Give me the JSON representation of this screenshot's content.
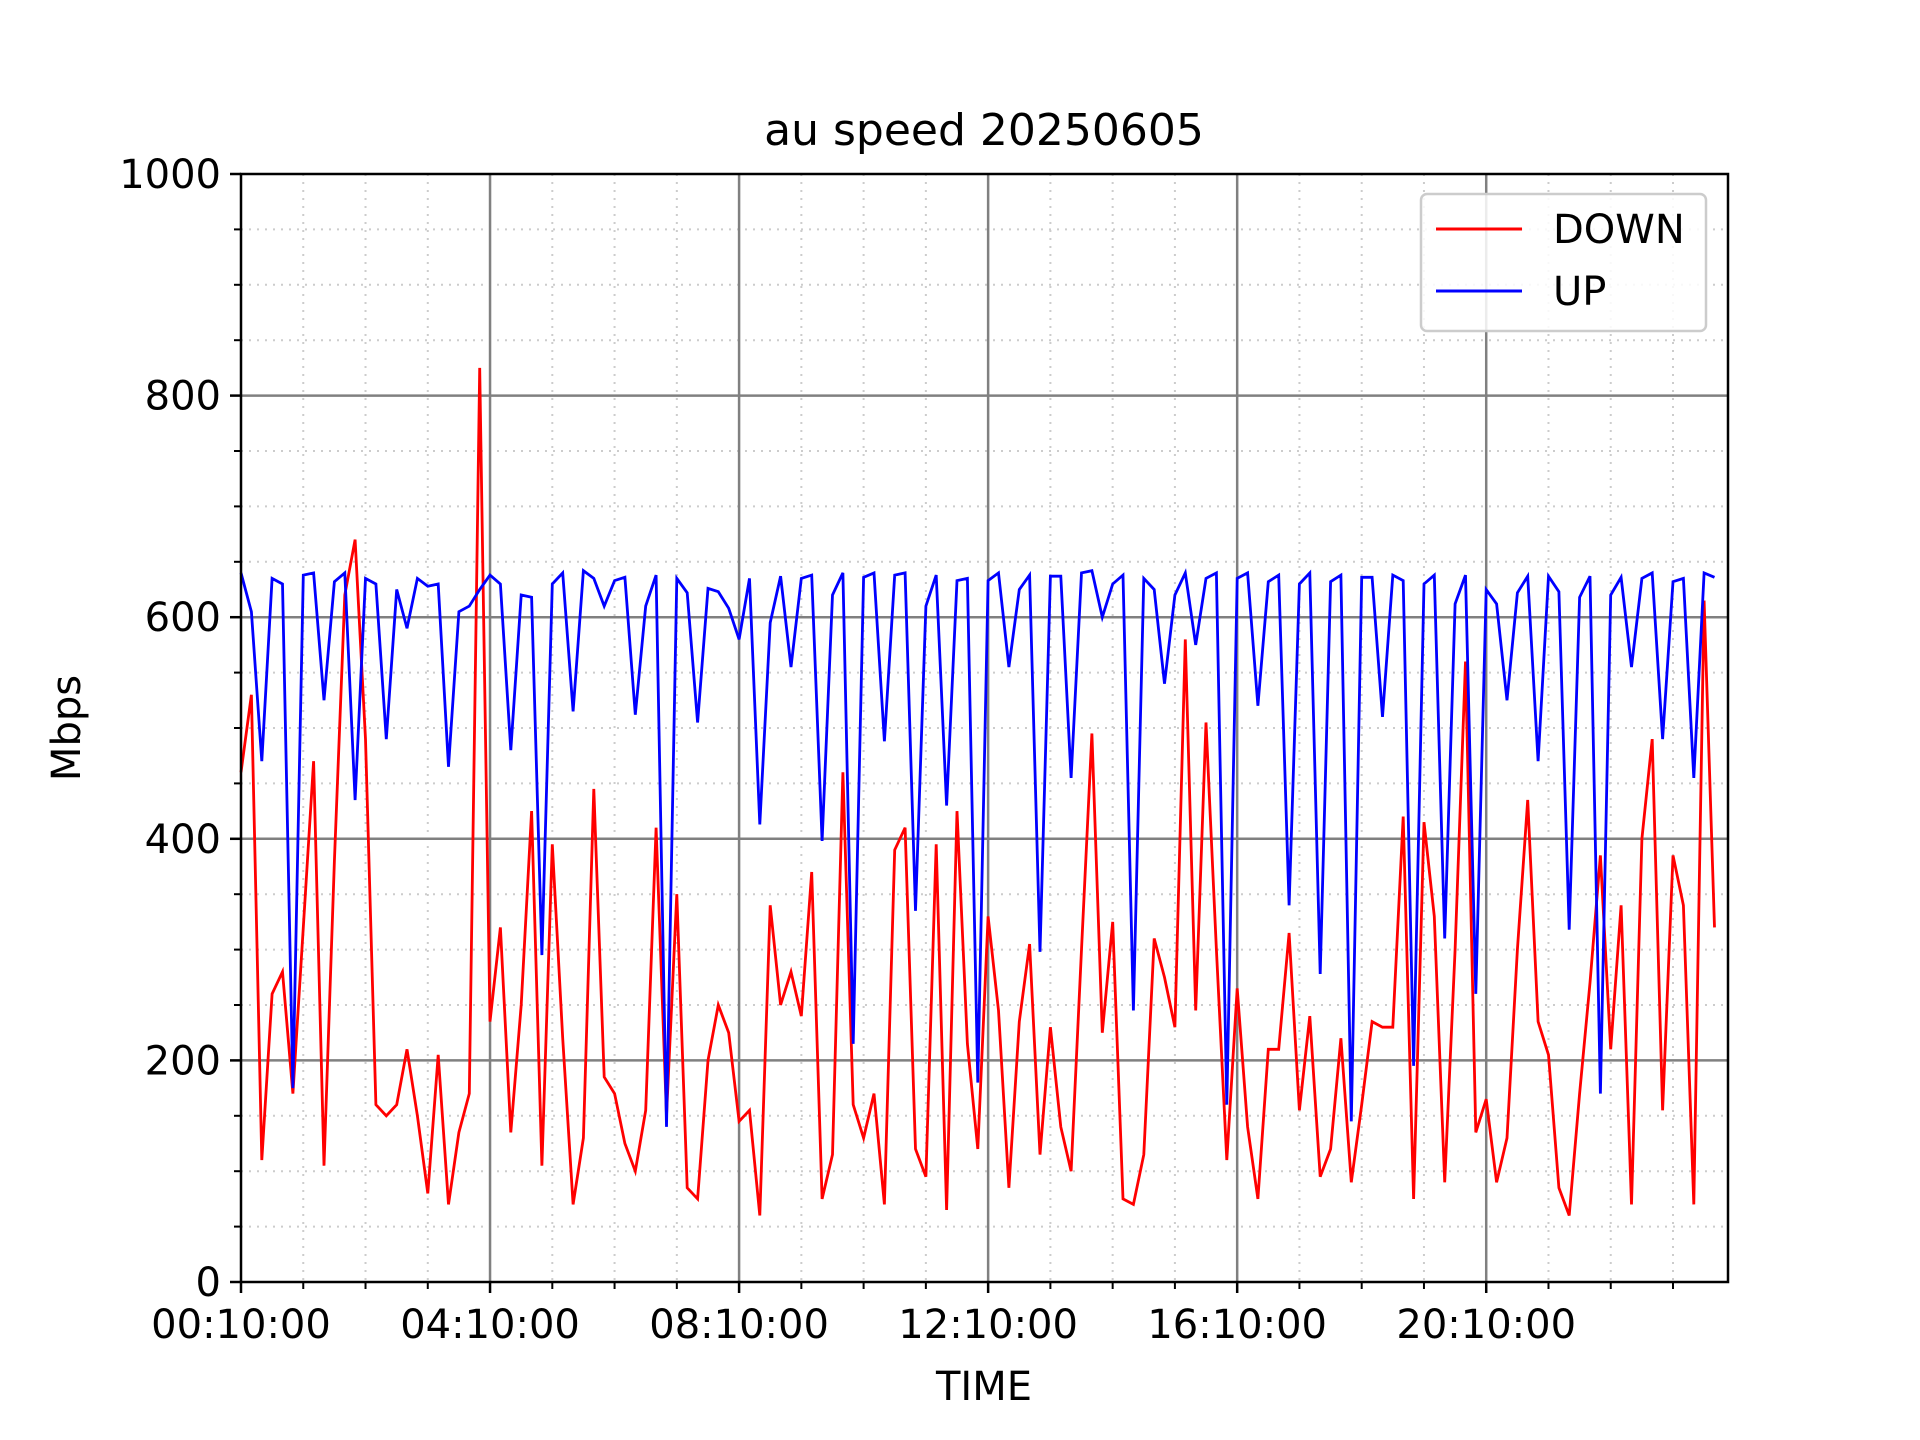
{
  "chart_data": {
    "type": "line",
    "title": "au speed 20250605",
    "xlabel": "TIME",
    "ylabel": "Mbps",
    "ylim": [
      0,
      1000
    ],
    "yticks": [
      "0",
      "200",
      "400",
      "600",
      "800",
      "1000"
    ],
    "xticks": [
      "00:10:00",
      "04:10:00",
      "08:10:00",
      "12:10:00",
      "16:10:00",
      "20:10:00"
    ],
    "xlim": [
      "00:10",
      "24:03"
    ],
    "grid": true,
    "legend_position": "top-right",
    "x": [
      "00:10",
      "00:20",
      "00:30",
      "00:40",
      "00:50",
      "01:00",
      "01:10",
      "01:20",
      "01:30",
      "01:40",
      "01:50",
      "02:00",
      "02:10",
      "02:20",
      "02:30",
      "02:40",
      "02:50",
      "03:00",
      "03:10",
      "03:20",
      "03:30",
      "03:40",
      "03:50",
      "04:00",
      "04:10",
      "04:20",
      "04:30",
      "04:40",
      "04:50",
      "05:00",
      "05:10",
      "05:20",
      "05:30",
      "05:40",
      "05:50",
      "06:00",
      "06:10",
      "06:20",
      "06:30",
      "06:40",
      "06:50",
      "07:00",
      "07:10",
      "07:20",
      "07:30",
      "07:40",
      "07:50",
      "08:00",
      "08:10",
      "08:20",
      "08:30",
      "08:40",
      "08:50",
      "09:00",
      "09:10",
      "09:20",
      "09:30",
      "09:40",
      "09:50",
      "10:00",
      "10:10",
      "10:20",
      "10:30",
      "10:40",
      "10:50",
      "11:00",
      "11:10",
      "11:20",
      "11:30",
      "11:40",
      "11:50",
      "12:00",
      "12:10",
      "12:20",
      "12:30",
      "12:40",
      "12:50",
      "13:00",
      "13:10",
      "13:20",
      "13:30",
      "13:40",
      "13:50",
      "14:00",
      "14:10",
      "14:20",
      "14:30",
      "14:40",
      "14:50",
      "15:00",
      "15:10",
      "15:20",
      "15:30",
      "15:40",
      "15:50",
      "16:00",
      "16:10",
      "16:20",
      "16:30",
      "16:40",
      "16:50",
      "17:00",
      "17:10",
      "17:20",
      "17:30",
      "17:40",
      "17:50",
      "18:00",
      "18:10",
      "18:20",
      "18:30",
      "18:40",
      "18:50",
      "19:00",
      "19:10",
      "19:20",
      "19:30",
      "19:40",
      "19:50",
      "20:00",
      "20:10",
      "20:20",
      "20:30",
      "20:40",
      "20:50",
      "21:00",
      "21:10",
      "21:20",
      "21:30",
      "21:40",
      "21:50",
      "22:00",
      "22:10",
      "22:20",
      "22:30",
      "22:40",
      "22:50",
      "23:00",
      "23:10",
      "23:20",
      "23:30",
      "23:40",
      "23:50"
    ],
    "series": [
      {
        "name": "DOWN",
        "color": "#ff0000",
        "values": [
          460,
          530,
          110,
          260,
          280,
          170,
          320,
          470,
          105,
          380,
          620,
          670,
          490,
          160,
          150,
          160,
          210,
          150,
          80,
          205,
          70,
          135,
          170,
          825,
          235,
          320,
          135,
          250,
          425,
          105,
          395,
          220,
          70,
          130,
          445,
          185,
          170,
          125,
          100,
          155,
          410,
          150,
          350,
          85,
          75,
          200,
          250,
          225,
          145,
          155,
          60,
          340,
          250,
          280,
          240,
          370,
          75,
          115,
          460,
          160,
          130,
          170,
          70,
          390,
          410,
          120,
          95,
          395,
          65,
          425,
          215,
          120,
          330,
          245,
          85,
          235,
          305,
          115,
          230,
          140,
          100,
          300,
          495,
          225,
          325,
          75,
          70,
          115,
          310,
          275,
          230,
          580,
          245,
          505,
          300,
          110,
          265,
          140,
          75,
          210,
          210,
          315,
          155,
          240,
          95,
          120,
          220,
          90,
          160,
          235,
          230,
          230,
          420,
          75,
          415,
          330,
          90,
          300,
          560,
          135,
          165,
          90,
          130,
          300,
          435,
          235,
          205,
          85,
          60,
          170,
          270,
          385,
          210,
          340,
          70,
          400,
          490,
          155,
          385,
          340,
          70,
          615,
          320
        ]
      },
      {
        "name": "UP",
        "color": "#0000ff",
        "values": [
          640,
          605,
          470,
          635,
          630,
          175,
          638,
          640,
          525,
          632,
          640,
          435,
          635,
          630,
          490,
          625,
          590,
          635,
          628,
          630,
          465,
          605,
          610,
          625,
          638,
          630,
          480,
          620,
          618,
          295,
          630,
          640,
          515,
          642,
          635,
          610,
          633,
          636,
          512,
          610,
          638,
          140,
          635,
          622,
          505,
          626,
          623,
          608,
          580,
          635,
          413,
          595,
          637,
          555,
          635,
          638,
          398,
          620,
          640,
          215,
          636,
          640,
          488,
          638,
          640,
          335,
          610,
          638,
          430,
          633,
          635,
          180,
          633,
          640,
          555,
          625,
          638,
          298,
          637,
          637,
          455,
          640,
          642,
          600,
          630,
          638,
          245,
          635,
          625,
          540,
          620,
          640,
          575,
          635,
          640,
          160,
          635,
          640,
          520,
          632,
          638,
          340,
          630,
          640,
          278,
          632,
          638,
          145,
          636,
          636,
          510,
          638,
          633,
          195,
          630,
          638,
          310,
          612,
          638,
          260,
          625,
          612,
          525,
          622,
          637,
          470,
          637,
          623,
          318,
          618,
          637,
          170,
          620,
          636,
          555,
          635,
          640,
          490,
          632,
          635,
          455,
          640,
          636
        ]
      }
    ]
  }
}
